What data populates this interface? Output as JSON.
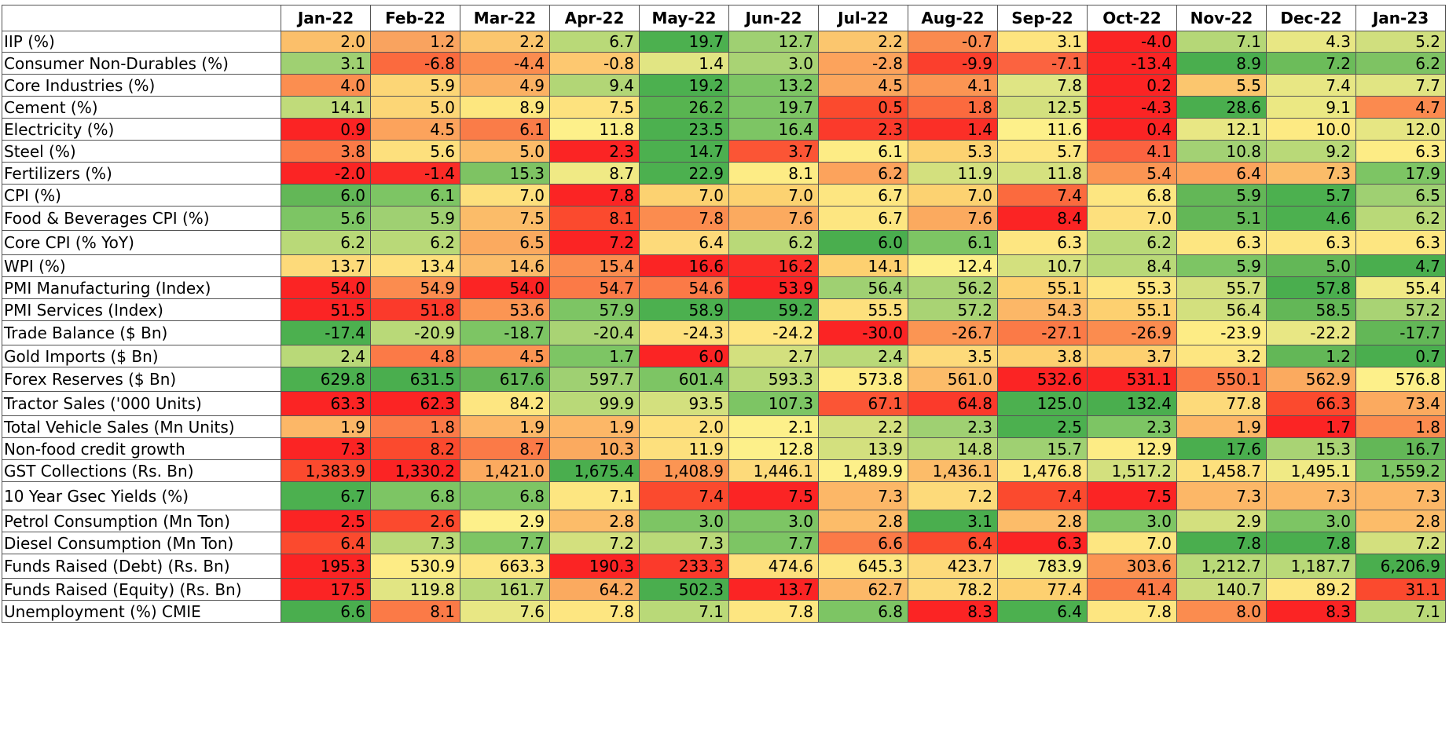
{
  "chart_data": {
    "type": "heatmap",
    "columns": [
      "Jan-22",
      "Feb-22",
      "Mar-22",
      "Apr-22",
      "May-22",
      "Jun-22",
      "Jul-22",
      "Aug-22",
      "Sep-22",
      "Oct-22",
      "Nov-22",
      "Dec-22",
      "Jan-23"
    ],
    "rows": [
      {
        "label": "IIP (%)",
        "values": [
          "2.0",
          "1.2",
          "2.2",
          "6.7",
          "19.7",
          "12.7",
          "2.2",
          "-0.7",
          "3.1",
          "-4.0",
          "7.1",
          "4.3",
          "5.2"
        ],
        "colors": [
          "#fbbf6a",
          "#f9a35f",
          "#fbc66e",
          "#b9d978",
          "#4cb04f",
          "#9fd072",
          "#fbc66e",
          "#fa8a4f",
          "#fde47f",
          "#fb2424",
          "#b5d777",
          "#e8e784",
          "#d0df7e"
        ]
      },
      {
        "label": "Consumer Non-Durables (%)",
        "values": [
          "3.1",
          "-6.8",
          "-4.4",
          "-0.8",
          "1.4",
          "3.0",
          "-2.8",
          "-9.9",
          "-7.1",
          "-13.4",
          "8.9",
          "7.2",
          "6.2"
        ],
        "colors": [
          "#9fd072",
          "#fb6a3e",
          "#fb8c4f",
          "#fdc870",
          "#e1e583",
          "#a9d374",
          "#fca35c",
          "#fb3f2d",
          "#fb6340",
          "#fb2424",
          "#4aae4e",
          "#6cbc5a",
          "#7ec363"
        ]
      },
      {
        "label": "Core Industries (%)",
        "values": [
          "4.0",
          "5.9",
          "4.9",
          "9.4",
          "19.2",
          "13.2",
          "4.5",
          "4.1",
          "7.8",
          "0.2",
          "5.5",
          "7.4",
          "7.7"
        ],
        "colors": [
          "#fb8e50",
          "#fcd676",
          "#fbb163",
          "#b2d676",
          "#4cb04f",
          "#7dc564",
          "#fba65d",
          "#fb9553",
          "#dfe584",
          "#fb2424",
          "#fbc66e",
          "#e8e784",
          "#e1e583"
        ]
      },
      {
        "label": "Cement (%)",
        "values": [
          "14.1",
          "5.0",
          "8.9",
          "7.5",
          "26.2",
          "19.7",
          "0.5",
          "1.8",
          "12.5",
          "-4.3",
          "28.6",
          "9.1",
          "4.7"
        ],
        "colors": [
          "#c0db7a",
          "#fcd676",
          "#fde77f",
          "#fde27e",
          "#57b450",
          "#7dc564",
          "#fb4a2e",
          "#fb6a3e",
          "#d3e07e",
          "#fb2424",
          "#4aae4e",
          "#ebe883",
          "#fb8a4f"
        ]
      },
      {
        "label": "Electricity (%)",
        "values": [
          "0.9",
          "4.5",
          "6.1",
          "11.8",
          "23.5",
          "16.4",
          "2.3",
          "1.4",
          "11.6",
          "0.4",
          "12.1",
          "10.0",
          "12.0"
        ],
        "colors": [
          "#fb2424",
          "#fca35c",
          "#fa7c48",
          "#fdf08a",
          "#4cb04f",
          "#7dc564",
          "#fb3a2b",
          "#fb2f27",
          "#fdf08a",
          "#fb2424",
          "#e8e784",
          "#fdea83",
          "#e6e683"
        ]
      },
      {
        "label": "Steel (%)",
        "values": [
          "3.8",
          "5.6",
          "5.0",
          "2.3",
          "14.7",
          "3.7",
          "6.1",
          "5.3",
          "5.7",
          "4.1",
          "10.8",
          "9.2",
          "6.3"
        ],
        "colors": [
          "#fb7a47",
          "#fde07d",
          "#fcbc69",
          "#fb2424",
          "#4cb04f",
          "#fb5535",
          "#fdec85",
          "#fcd271",
          "#fde681",
          "#fb6340",
          "#a3d174",
          "#b9d978",
          "#fdec85"
        ]
      },
      {
        "label": "Fertilizers (%)",
        "values": [
          "-2.0",
          "-1.4",
          "15.3",
          "8.7",
          "22.9",
          "8.1",
          "6.2",
          "11.9",
          "11.8",
          "5.4",
          "6.4",
          "7.3",
          "17.9"
        ],
        "colors": [
          "#fb2424",
          "#fb2c27",
          "#7ec363",
          "#f0ea85",
          "#4cb04f",
          "#fdec85",
          "#fca35c",
          "#d3e07e",
          "#d5e17f",
          "#fb9553",
          "#fca35c",
          "#fbbc69",
          "#7dc564"
        ]
      },
      {
        "label": "CPI (%)",
        "values": [
          "6.0",
          "6.1",
          "7.0",
          "7.8",
          "7.0",
          "7.0",
          "6.7",
          "7.0",
          "7.4",
          "6.8",
          "5.9",
          "5.7",
          "6.5"
        ],
        "colors": [
          "#63b757",
          "#7dc564",
          "#fde07d",
          "#fb2424",
          "#fcd271",
          "#fcd271",
          "#fde681",
          "#fcd271",
          "#fb6a3e",
          "#fde681",
          "#63b757",
          "#4cb04f",
          "#9fd072"
        ]
      },
      {
        "label": "Food & Beverages CPI (%)",
        "values": [
          "5.6",
          "5.9",
          "7.5",
          "8.1",
          "7.8",
          "7.6",
          "6.7",
          "7.6",
          "8.4",
          "7.0",
          "5.1",
          "4.6",
          "6.2"
        ],
        "colors": [
          "#7dc564",
          "#9fd072",
          "#fbbc69",
          "#fb4a2e",
          "#fb8c4f",
          "#fbaa5f",
          "#fde681",
          "#fbaa5f",
          "#fb2424",
          "#fde07d",
          "#63b757",
          "#4cb04f",
          "#b9d978"
        ]
      },
      {
        "label": "Core CPI (% YoY)",
        "values": [
          "6.2",
          "6.2",
          "6.5",
          "7.2",
          "6.4",
          "6.2",
          "6.0",
          "6.1",
          "6.3",
          "6.2",
          "6.3",
          "6.3",
          "6.3"
        ],
        "colors": [
          "#b9d978",
          "#b9d978",
          "#fbaa5f",
          "#fb2424",
          "#fdda7a",
          "#b9d978",
          "#4aae4e",
          "#7dc564",
          "#fde681",
          "#b9d978",
          "#fde681",
          "#fde681",
          "#fde681"
        ]
      },
      {
        "label": "WPI (%)",
        "values": [
          "13.7",
          "13.4",
          "14.6",
          "15.4",
          "16.6",
          "16.2",
          "14.1",
          "12.4",
          "10.7",
          "8.4",
          "5.9",
          "5.0",
          "4.7"
        ],
        "colors": [
          "#fdda7a",
          "#fde07d",
          "#fbbc69",
          "#fb8c4f",
          "#fb2424",
          "#fb2c27",
          "#fdd070",
          "#fdf08a",
          "#d3e07e",
          "#b9d978",
          "#7dc564",
          "#63b757",
          "#4aae4e"
        ]
      },
      {
        "label": "PMI Manufacturing (Index)",
        "values": [
          "54.0",
          "54.9",
          "54.0",
          "54.7",
          "54.6",
          "53.9",
          "56.4",
          "56.2",
          "55.1",
          "55.3",
          "55.7",
          "57.8",
          "55.4"
        ],
        "colors": [
          "#fb2424",
          "#fb8c4f",
          "#fb2424",
          "#fb7a47",
          "#fb7a47",
          "#fb2424",
          "#9fd072",
          "#a9d374",
          "#fdd070",
          "#fde681",
          "#d3e07e",
          "#4aae4e",
          "#f0ea85"
        ]
      },
      {
        "label": "PMI Services (Index)",
        "values": [
          "51.5",
          "51.8",
          "53.6",
          "57.9",
          "58.9",
          "59.2",
          "55.5",
          "57.2",
          "54.3",
          "55.1",
          "56.4",
          "58.5",
          "57.2"
        ],
        "colors": [
          "#fb2424",
          "#fb3a2b",
          "#fb9553",
          "#7dc564",
          "#4cb04f",
          "#4aae4e",
          "#fde07d",
          "#a9d374",
          "#fcb767",
          "#fdd070",
          "#d3e07e",
          "#63b757",
          "#a9d374"
        ]
      },
      {
        "label": "Trade Balance ($ Bn)",
        "values": [
          "-17.4",
          "-20.9",
          "-18.7",
          "-20.4",
          "-24.3",
          "-24.2",
          "-30.0",
          "-26.7",
          "-27.1",
          "-26.9",
          "-23.9",
          "-22.2",
          "-17.7"
        ],
        "colors": [
          "#4cb04f",
          "#b9d978",
          "#7dc564",
          "#a9d374",
          "#fde07d",
          "#fde681",
          "#fb2424",
          "#fb9553",
          "#fb7a47",
          "#fb8c4f",
          "#fdec85",
          "#e8e784",
          "#63b757"
        ]
      },
      {
        "label": "Gold Imports ($ Bn)",
        "values": [
          "2.4",
          "4.8",
          "4.5",
          "1.7",
          "6.0",
          "2.7",
          "2.4",
          "3.5",
          "3.8",
          "3.7",
          "3.2",
          "1.2",
          "0.7"
        ],
        "colors": [
          "#b9d978",
          "#fb7a47",
          "#fb9553",
          "#7dc564",
          "#fb2424",
          "#d3e07e",
          "#b9d978",
          "#fdda7a",
          "#fdd070",
          "#fdd070",
          "#fde681",
          "#63b757",
          "#4aae4e"
        ]
      },
      {
        "label": "Forex Reserves ($ Bn)",
        "values": [
          "629.8",
          "631.5",
          "617.6",
          "597.7",
          "601.4",
          "593.3",
          "573.8",
          "561.0",
          "532.6",
          "531.1",
          "550.1",
          "562.9",
          "576.8"
        ],
        "colors": [
          "#4cb04f",
          "#4aae4e",
          "#63b757",
          "#9fd072",
          "#7dc564",
          "#b9d978",
          "#fdec85",
          "#fcbc69",
          "#fb2424",
          "#fb2424",
          "#fb7a47",
          "#fbaa5f",
          "#fdf08a"
        ]
      },
      {
        "label": "Tractor Sales ('000 Units)",
        "values": [
          "63.3",
          "62.3",
          "84.2",
          "99.9",
          "93.5",
          "107.3",
          "67.1",
          "64.8",
          "125.0",
          "132.4",
          "77.8",
          "66.3",
          "73.4"
        ],
        "colors": [
          "#fb2424",
          "#fb2424",
          "#fde681",
          "#b9d978",
          "#d3e07e",
          "#7dc564",
          "#fb5535",
          "#fb3a2b",
          "#4cb04f",
          "#4aae4e",
          "#fdda7a",
          "#fb4a2e",
          "#fbaa5f"
        ]
      },
      {
        "label": "Total Vehicle Sales (Mn Units)",
        "values": [
          "1.9",
          "1.8",
          "1.9",
          "1.9",
          "2.0",
          "2.1",
          "2.2",
          "2.3",
          "2.5",
          "2.3",
          "1.9",
          "1.7",
          "1.8"
        ],
        "colors": [
          "#fcb767",
          "#fb7a47",
          "#fcb767",
          "#fcb767",
          "#fde07d",
          "#fdf08a",
          "#d3e07e",
          "#9fd072",
          "#4cb04f",
          "#7dc564",
          "#fcb767",
          "#fb2424",
          "#fb8c4f"
        ]
      },
      {
        "label": "Non-food credit growth",
        "values": [
          "7.3",
          "8.2",
          "8.7",
          "10.3",
          "11.9",
          "12.8",
          "13.9",
          "14.8",
          "15.7",
          "12.9",
          "17.6",
          "15.3",
          "16.7"
        ],
        "colors": [
          "#fb2424",
          "#fb4a2e",
          "#fb7a47",
          "#fbaa5f",
          "#fde07d",
          "#fdf08a",
          "#d3e07e",
          "#b9d978",
          "#9fd072",
          "#fdec85",
          "#4aae4e",
          "#a9d374",
          "#63b757"
        ]
      },
      {
        "label": "GST Collections (Rs. Bn)",
        "values": [
          "1,383.9",
          "1,330.2",
          "1,421.0",
          "1,675.4",
          "1,408.9",
          "1,446.1",
          "1,489.9",
          "1,436.1",
          "1,476.8",
          "1,517.2",
          "1,458.7",
          "1,495.1",
          "1,559.2"
        ],
        "colors": [
          "#fb4a2e",
          "#fb2424",
          "#fbaa5f",
          "#4aae4e",
          "#fb9553",
          "#fdda7a",
          "#fdf08a",
          "#fcbc69",
          "#fde681",
          "#d3e07e",
          "#fde07d",
          "#f0ea85",
          "#7dc564"
        ]
      },
      {
        "label": "10 Year Gsec Yields (%)",
        "values": [
          "6.7",
          "6.8",
          "6.8",
          "7.1",
          "7.4",
          "7.5",
          "7.3",
          "7.2",
          "7.4",
          "7.5",
          "7.3",
          "7.3",
          "7.3"
        ],
        "colors": [
          "#4cb04f",
          "#7dc564",
          "#7dc564",
          "#fde681",
          "#fb4a2e",
          "#fb2424",
          "#fcb767",
          "#fdda7a",
          "#fb4a2e",
          "#fb2424",
          "#fcb767",
          "#fcb767",
          "#fcb767"
        ]
      },
      {
        "label": "Petrol Consumption (Mn Ton)",
        "values": [
          "2.5",
          "2.6",
          "2.9",
          "2.8",
          "3.0",
          "3.0",
          "2.8",
          "3.1",
          "2.8",
          "3.0",
          "2.9",
          "3.0",
          "2.8"
        ],
        "colors": [
          "#fb2424",
          "#fb4a2e",
          "#fdf08a",
          "#fcbc69",
          "#7dc564",
          "#7dc564",
          "#fcbc69",
          "#4aae4e",
          "#fcbc69",
          "#7dc564",
          "#d3e07e",
          "#7dc564",
          "#fcbc69"
        ]
      },
      {
        "label": "Diesel Consumption (Mn Ton)",
        "values": [
          "6.4",
          "7.3",
          "7.7",
          "7.2",
          "7.3",
          "7.7",
          "6.6",
          "6.4",
          "6.3",
          "7.0",
          "7.8",
          "7.8",
          "7.2"
        ],
        "colors": [
          "#fb4a2e",
          "#b9d978",
          "#7dc564",
          "#d3e07e",
          "#b9d978",
          "#7dc564",
          "#fb7a47",
          "#fb4a2e",
          "#fb2424",
          "#fde681",
          "#4aae4e",
          "#4aae4e",
          "#d3e07e"
        ]
      },
      {
        "label": "Funds Raised (Debt) (Rs. Bn)",
        "values": [
          "195.3",
          "530.9",
          "663.3",
          "190.3",
          "233.3",
          "474.6",
          "645.3",
          "423.7",
          "783.9",
          "303.6",
          "1,212.7",
          "1,187.7",
          "6,206.9"
        ],
        "colors": [
          "#fb2424",
          "#fdec85",
          "#fde681",
          "#fb2424",
          "#fb3a2b",
          "#fde07d",
          "#fde681",
          "#fdda7a",
          "#f0ea85",
          "#fb9553",
          "#b9d978",
          "#b9d978",
          "#4aae4e"
        ]
      },
      {
        "label": "Funds Raised (Equity) (Rs. Bn)",
        "values": [
          "17.5",
          "119.8",
          "161.7",
          "64.2",
          "502.3",
          "13.7",
          "62.7",
          "78.2",
          "77.4",
          "41.4",
          "140.7",
          "89.2",
          "31.1"
        ],
        "colors": [
          "#fb2424",
          "#e1e583",
          "#b9d978",
          "#fbaa5f",
          "#4aae4e",
          "#fb2424",
          "#fcb767",
          "#fdda7a",
          "#fdd070",
          "#fb7a47",
          "#c9dc7c",
          "#fde681",
          "#fb4a2e"
        ]
      },
      {
        "label": "Unemployment (%) CMIE",
        "values": [
          "6.6",
          "8.1",
          "7.6",
          "7.8",
          "7.1",
          "7.8",
          "6.8",
          "8.3",
          "6.4",
          "7.8",
          "8.0",
          "8.3",
          "7.1"
        ],
        "colors": [
          "#4aae4e",
          "#fb7a47",
          "#e8e784",
          "#fde681",
          "#b9d978",
          "#fde681",
          "#7dc564",
          "#fb2424",
          "#4cb04f",
          "#fde681",
          "#fb8c4f",
          "#fb2424",
          "#b9d978"
        ]
      }
    ]
  }
}
